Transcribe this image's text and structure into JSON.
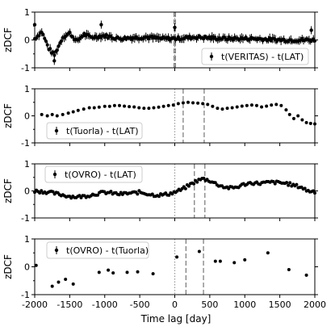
{
  "chart_data": [
    {
      "type": "scatter",
      "ylabel": "zDCF",
      "ylim": [
        -1,
        1
      ],
      "yticks": [
        -1,
        0,
        1
      ],
      "xlim": [
        -2000,
        2000
      ],
      "legend": "t(VERITAS) - t(LAT)",
      "legend_position": "lower-right",
      "reference_lines": [
        {
          "x": 0,
          "style": "dotted",
          "color": "#999999"
        },
        {
          "x": -10,
          "style": "dashed",
          "color": "#777777"
        },
        {
          "x": 10,
          "style": "dashed",
          "color": "#777777"
        }
      ],
      "series": [
        {
          "style": "dense",
          "x_start": -2000,
          "x_end": 2000,
          "n": 200,
          "err": 0.12,
          "anchors": [
            [
              -2000,
              0.05
            ],
            [
              -1900,
              0.3
            ],
            [
              -1800,
              -0.3
            ],
            [
              -1720,
              -0.55
            ],
            [
              -1600,
              0.1
            ],
            [
              -1500,
              0.25
            ],
            [
              -1400,
              -0.05
            ],
            [
              -1300,
              0.2
            ],
            [
              -1200,
              0.1
            ],
            [
              -1000,
              0.15
            ],
            [
              -800,
              0.05
            ],
            [
              -600,
              0.08
            ],
            [
              -400,
              0.1
            ],
            [
              -200,
              0.05
            ],
            [
              0,
              0.05
            ],
            [
              300,
              0.1
            ],
            [
              700,
              0.05
            ],
            [
              1100,
              0.05
            ],
            [
              1500,
              0.0
            ],
            [
              1800,
              0.0
            ],
            [
              2000,
              0.0
            ]
          ]
        }
      ],
      "outliers": [
        [
          -1050,
          0.55
        ],
        [
          -2000,
          0.55
        ],
        [
          0,
          0.45
        ],
        [
          1950,
          0.35
        ],
        [
          -1720,
          -0.75
        ]
      ]
    },
    {
      "type": "scatter",
      "ylabel": "zDCF",
      "ylim": [
        -1,
        1
      ],
      "yticks": [
        -1,
        0,
        1
      ],
      "xlim": [
        -2000,
        2000
      ],
      "legend": "t(Tuorla) - t(LAT)",
      "legend_position": "lower-left",
      "reference_lines": [
        {
          "x": 0,
          "style": "dotted",
          "color": "#999999"
        },
        {
          "x": 120,
          "style": "dashed",
          "color": "#777777"
        },
        {
          "x": 420,
          "style": "dashed",
          "color": "#777777"
        }
      ],
      "series": [
        {
          "style": "points",
          "points": [
            [
              -1900,
              0.05
            ],
            [
              -1820,
              0.0
            ],
            [
              -1750,
              0.05
            ],
            [
              -1680,
              0.0
            ],
            [
              -1600,
              0.05
            ],
            [
              -1520,
              0.1
            ],
            [
              -1450,
              0.15
            ],
            [
              -1380,
              0.2
            ],
            [
              -1300,
              0.25
            ],
            [
              -1220,
              0.3
            ],
            [
              -1150,
              0.3
            ],
            [
              -1080,
              0.32
            ],
            [
              -1000,
              0.35
            ],
            [
              -930,
              0.35
            ],
            [
              -860,
              0.38
            ],
            [
              -790,
              0.38
            ],
            [
              -720,
              0.36
            ],
            [
              -650,
              0.34
            ],
            [
              -580,
              0.33
            ],
            [
              -510,
              0.3
            ],
            [
              -440,
              0.28
            ],
            [
              -370,
              0.28
            ],
            [
              -300,
              0.3
            ],
            [
              -230,
              0.32
            ],
            [
              -160,
              0.35
            ],
            [
              -90,
              0.38
            ],
            [
              -20,
              0.4
            ],
            [
              50,
              0.45
            ],
            [
              120,
              0.48
            ],
            [
              190,
              0.5
            ],
            [
              260,
              0.48
            ],
            [
              330,
              0.47
            ],
            [
              400,
              0.45
            ],
            [
              470,
              0.42
            ],
            [
              540,
              0.35
            ],
            [
              610,
              0.28
            ],
            [
              680,
              0.25
            ],
            [
              750,
              0.28
            ],
            [
              820,
              0.3
            ],
            [
              890,
              0.33
            ],
            [
              960,
              0.36
            ],
            [
              1030,
              0.38
            ],
            [
              1100,
              0.4
            ],
            [
              1170,
              0.38
            ],
            [
              1240,
              0.33
            ],
            [
              1310,
              0.36
            ],
            [
              1380,
              0.4
            ],
            [
              1450,
              0.42
            ],
            [
              1520,
              0.38
            ],
            [
              1590,
              0.22
            ],
            [
              1640,
              0.05
            ],
            [
              1700,
              -0.1
            ],
            [
              1760,
              0.0
            ],
            [
              1820,
              -0.15
            ],
            [
              1880,
              -0.25
            ],
            [
              1940,
              -0.28
            ],
            [
              2000,
              -0.3
            ]
          ],
          "err": 0.05
        }
      ]
    },
    {
      "type": "scatter",
      "ylabel": "zDCF",
      "ylim": [
        -1,
        1
      ],
      "yticks": [
        -1,
        0,
        1
      ],
      "xlim": [
        -2000,
        2000
      ],
      "legend": "t(OVRO) - t(LAT)",
      "legend_position": "top-left",
      "reference_lines": [
        {
          "x": 0,
          "style": "dotted",
          "color": "#999999"
        },
        {
          "x": 280,
          "style": "dashed",
          "color": "#777777"
        },
        {
          "x": 430,
          "style": "dashed",
          "color": "#777777"
        }
      ],
      "series": [
        {
          "style": "dense",
          "x_start": -2000,
          "x_end": 2000,
          "n": 170,
          "err": 0.03,
          "anchors": [
            [
              -2000,
              0.0
            ],
            [
              -1900,
              -0.02
            ],
            [
              -1800,
              -0.05
            ],
            [
              -1700,
              -0.1
            ],
            [
              -1600,
              -0.15
            ],
            [
              -1500,
              -0.2
            ],
            [
              -1400,
              -0.22
            ],
            [
              -1300,
              -0.2
            ],
            [
              -1200,
              -0.15
            ],
            [
              -1100,
              -0.1
            ],
            [
              -1000,
              -0.05
            ],
            [
              -900,
              -0.08
            ],
            [
              -800,
              -0.12
            ],
            [
              -700,
              -0.1
            ],
            [
              -600,
              -0.08
            ],
            [
              -500,
              -0.05
            ],
            [
              -400,
              -0.1
            ],
            [
              -300,
              -0.15
            ],
            [
              -200,
              -0.15
            ],
            [
              -100,
              -0.12
            ],
            [
              0,
              -0.05
            ],
            [
              100,
              0.05
            ],
            [
              200,
              0.2
            ],
            [
              300,
              0.35
            ],
            [
              400,
              0.45
            ],
            [
              500,
              0.38
            ],
            [
              600,
              0.25
            ],
            [
              700,
              0.15
            ],
            [
              800,
              0.1
            ],
            [
              900,
              0.15
            ],
            [
              1000,
              0.25
            ],
            [
              1100,
              0.3
            ],
            [
              1200,
              0.28
            ],
            [
              1300,
              0.3
            ],
            [
              1400,
              0.32
            ],
            [
              1500,
              0.3
            ],
            [
              1600,
              0.28
            ],
            [
              1700,
              0.2
            ],
            [
              1800,
              0.15
            ],
            [
              1900,
              0.0
            ],
            [
              2000,
              -0.02
            ]
          ]
        }
      ]
    },
    {
      "type": "scatter",
      "ylabel": "zDCF",
      "xlabel": "Time lag [day]",
      "ylim": [
        -1,
        1
      ],
      "yticks": [
        -1,
        0,
        1
      ],
      "xlim": [
        -2000,
        2000
      ],
      "xticks": [
        -2000,
        -1500,
        -1000,
        -500,
        0,
        500,
        1000,
        1500,
        2000
      ],
      "legend": "t(OVRO) - t(Tuorla)",
      "legend_position": "top-left",
      "reference_lines": [
        {
          "x": 0,
          "style": "dotted",
          "color": "#999999"
        },
        {
          "x": 160,
          "style": "dashed",
          "color": "#777777"
        },
        {
          "x": 410,
          "style": "dashed",
          "color": "#777777"
        }
      ],
      "series": [
        {
          "style": "points",
          "points": [
            [
              -1980,
              0.05
            ],
            [
              -1750,
              -0.7
            ],
            [
              -1660,
              -0.55
            ],
            [
              -1560,
              -0.45
            ],
            [
              -1450,
              -0.62
            ],
            [
              -1080,
              -0.2
            ],
            [
              -950,
              -0.12
            ],
            [
              -880,
              -0.22
            ],
            [
              -680,
              -0.2
            ],
            [
              -530,
              -0.18
            ],
            [
              -310,
              -0.25
            ],
            [
              30,
              0.35
            ],
            [
              350,
              0.55
            ],
            [
              580,
              0.2
            ],
            [
              650,
              0.2
            ],
            [
              850,
              0.15
            ],
            [
              1000,
              0.25
            ],
            [
              1330,
              0.5
            ],
            [
              1630,
              -0.1
            ],
            [
              1880,
              -0.3
            ]
          ],
          "err": 0.05
        }
      ]
    }
  ]
}
